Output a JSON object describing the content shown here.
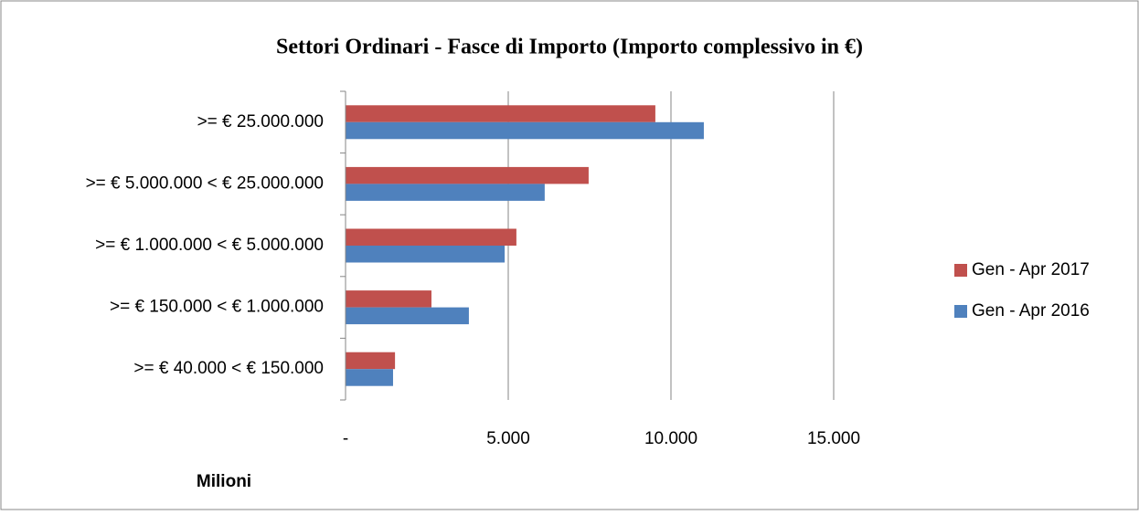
{
  "chart_data": {
    "type": "hbar",
    "title": "Settori Ordinari - Fasce di Importo (Importo complessivo in €)",
    "xlabel": "Milioni",
    "categories": [
      ">= € 25.000.000",
      ">= € 5.000.000 < € 25.000.000",
      ">= € 1.000.000 < € 5.000.000",
      ">= € 150.000 < € 1.000.000",
      ">= € 40.000 < € 150.000"
    ],
    "series": [
      {
        "name": "Gen - Apr 2017",
        "color": "#c0504d",
        "values": [
          9520,
          7470,
          5250,
          2640,
          1520
        ]
      },
      {
        "name": "Gen - Apr 2016",
        "color": "#4f81bd",
        "values": [
          11010,
          6120,
          4890,
          3790,
          1460
        ]
      }
    ],
    "xlim": [
      0,
      15000
    ],
    "xticks": [
      {
        "value": 0,
        "label": "-"
      },
      {
        "value": 5000,
        "label": "5.000"
      },
      {
        "value": 10000,
        "label": "10.000"
      },
      {
        "value": 15000,
        "label": "15.000"
      }
    ],
    "grid": true,
    "legend": "right"
  }
}
